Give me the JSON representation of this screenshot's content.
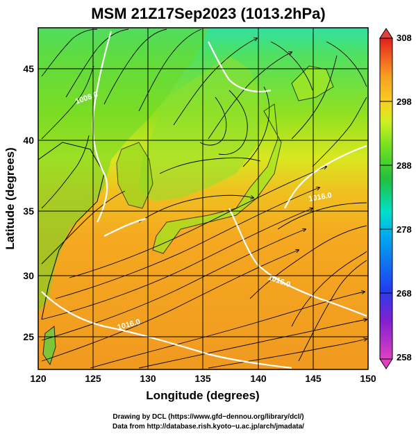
{
  "title": "MSM 21Z17Sep2023 (1013.2hPa)",
  "axes": {
    "xlabel": "Longitude (degrees)",
    "ylabel": "Latitude  (degrees)",
    "x_ticks": [
      "120",
      "125",
      "130",
      "135",
      "140",
      "145",
      "150"
    ],
    "y_ticks": [
      "25",
      "30",
      "35",
      "40",
      "45"
    ],
    "xlim": [
      120,
      150
    ],
    "ylim": [
      22.4,
      47.6
    ],
    "grid": true
  },
  "colorbar": {
    "ticks": [
      "308",
      "298",
      "288",
      "278",
      "268",
      "258"
    ],
    "range": [
      258,
      308
    ],
    "colors": [
      "#e040c0",
      "#8020d0",
      "#2040f0",
      "#00a8f0",
      "#00e0c8",
      "#20c040",
      "#70e020",
      "#d0f020",
      "#f8d020",
      "#f8a020",
      "#f06020",
      "#e02020"
    ]
  },
  "map": {
    "contour_labels": [
      "1008.0",
      "1016.0",
      "1016.0",
      "1016.0"
    ],
    "contour_color": "#ffffff",
    "land_color": "#38c830",
    "sea_color_warm": "#f5a020",
    "coast_color": "#000000"
  },
  "credits": {
    "line1": "Drawing by DCL (https://www.gfd−dennou.org/library/dcl/)",
    "line2": "Data from http://database.rish.kyoto−u.ac.jp/arch/jmadata/"
  }
}
